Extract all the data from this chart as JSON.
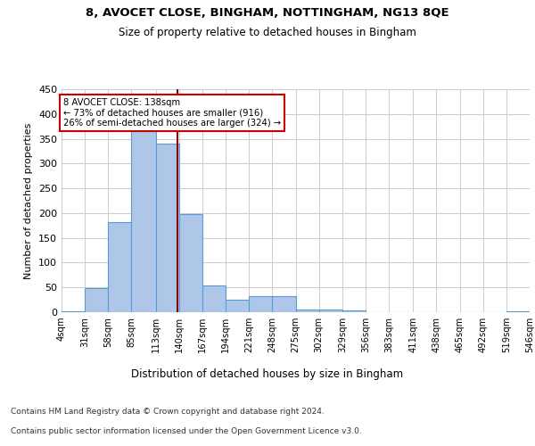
{
  "title1": "8, AVOCET CLOSE, BINGHAM, NOTTINGHAM, NG13 8QE",
  "title2": "Size of property relative to detached houses in Bingham",
  "xlabel": "Distribution of detached houses by size in Bingham",
  "ylabel": "Number of detached properties",
  "bin_edges": [
    4,
    31,
    58,
    85,
    113,
    140,
    167,
    194,
    221,
    248,
    275,
    302,
    329,
    356,
    383,
    411,
    438,
    465,
    492,
    519,
    546
  ],
  "bar_heights": [
    2,
    48,
    182,
    367,
    340,
    198,
    54,
    26,
    32,
    32,
    5,
    6,
    4,
    0,
    0,
    0,
    0,
    0,
    0,
    2
  ],
  "bar_color": "#aec6e8",
  "bar_edgecolor": "#5b9bd5",
  "bar_alpha": 1.0,
  "vline_x": 138,
  "vline_color": "#8b0000",
  "annotation_text": "8 AVOCET CLOSE: 138sqm\n← 73% of detached houses are smaller (916)\n26% of semi-detached houses are larger (324) →",
  "annotation_box_edgecolor": "#cc0000",
  "annotation_box_facecolor": "#ffffff",
  "ylim": [
    0,
    450
  ],
  "yticks": [
    0,
    50,
    100,
    150,
    200,
    250,
    300,
    350,
    400,
    450
  ],
  "footnote1": "Contains HM Land Registry data © Crown copyright and database right 2024.",
  "footnote2": "Contains public sector information licensed under the Open Government Licence v3.0.",
  "background_color": "#ffffff",
  "grid_color": "#cccccc",
  "tick_labels": [
    "4sqm",
    "31sqm",
    "58sqm",
    "85sqm",
    "113sqm",
    "140sqm",
    "167sqm",
    "194sqm",
    "221sqm",
    "248sqm",
    "275sqm",
    "302sqm",
    "329sqm",
    "356sqm",
    "383sqm",
    "411sqm",
    "438sqm",
    "465sqm",
    "492sqm",
    "519sqm",
    "546sqm"
  ]
}
